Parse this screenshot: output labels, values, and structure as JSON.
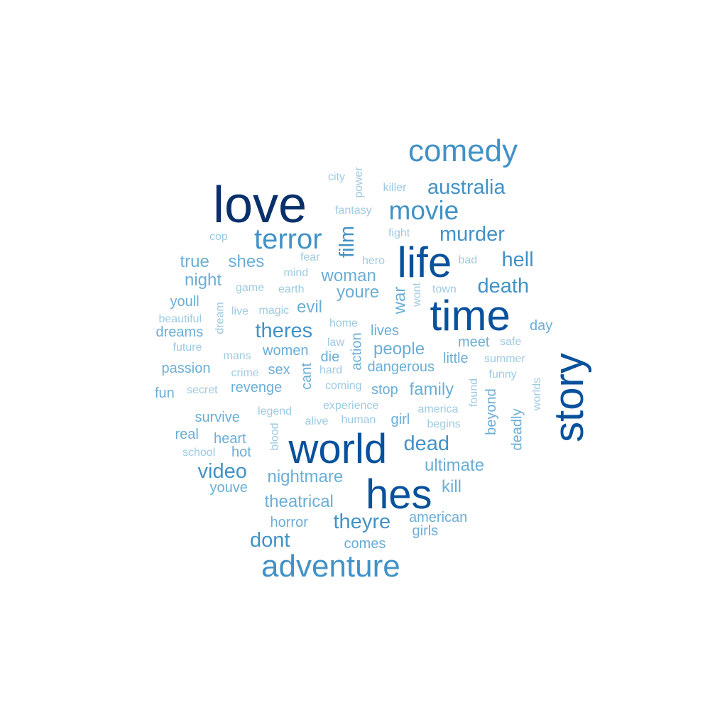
{
  "chart_data": {
    "type": "wordcloud",
    "palette": [
      "#08306b",
      "#08519c",
      "#2171b5",
      "#4292c6",
      "#6baed6",
      "#9ecae1"
    ],
    "words": [
      {
        "text": "love",
        "weight": 6,
        "vertical": false
      },
      {
        "text": "time",
        "weight": 6,
        "vertical": false
      },
      {
        "text": "life",
        "weight": 6,
        "vertical": false
      },
      {
        "text": "world",
        "weight": 6,
        "vertical": false
      },
      {
        "text": "hes",
        "weight": 6,
        "vertical": false
      },
      {
        "text": "story",
        "weight": 6,
        "vertical": true
      },
      {
        "text": "comedy",
        "weight": 4,
        "vertical": false
      },
      {
        "text": "terror",
        "weight": 4,
        "vertical": false
      },
      {
        "text": "adventure",
        "weight": 4,
        "vertical": false
      },
      {
        "text": "movie",
        "weight": 4,
        "vertical": false
      },
      {
        "text": "australia",
        "weight": 3,
        "vertical": false
      },
      {
        "text": "murder",
        "weight": 3,
        "vertical": false
      },
      {
        "text": "hell",
        "weight": 3,
        "vertical": false
      },
      {
        "text": "death",
        "weight": 3,
        "vertical": false
      },
      {
        "text": "theyre",
        "weight": 3,
        "vertical": false
      },
      {
        "text": "film",
        "weight": 3,
        "vertical": true
      },
      {
        "text": "theres",
        "weight": 3,
        "vertical": false
      },
      {
        "text": "dead",
        "weight": 3,
        "vertical": false
      },
      {
        "text": "video",
        "weight": 3,
        "vertical": false
      },
      {
        "text": "dont",
        "weight": 3,
        "vertical": false
      },
      {
        "text": "true",
        "weight": 2,
        "vertical": false
      },
      {
        "text": "shes",
        "weight": 2,
        "vertical": false
      },
      {
        "text": "night",
        "weight": 2,
        "vertical": false
      },
      {
        "text": "woman",
        "weight": 2,
        "vertical": false
      },
      {
        "text": "youre",
        "weight": 2,
        "vertical": false
      },
      {
        "text": "war",
        "weight": 2,
        "vertical": true
      },
      {
        "text": "evil",
        "weight": 2,
        "vertical": false
      },
      {
        "text": "people",
        "weight": 2,
        "vertical": false
      },
      {
        "text": "family",
        "weight": 2,
        "vertical": false
      },
      {
        "text": "ultimate",
        "weight": 2,
        "vertical": false
      },
      {
        "text": "nightmare",
        "weight": 2,
        "vertical": false
      },
      {
        "text": "kill",
        "weight": 2,
        "vertical": false
      },
      {
        "text": "theatrical",
        "weight": 2,
        "vertical": false
      },
      {
        "text": "lives",
        "weight": 1,
        "vertical": false
      },
      {
        "text": "die",
        "weight": 1,
        "vertical": false
      },
      {
        "text": "stop",
        "weight": 1,
        "vertical": false
      },
      {
        "text": "girl",
        "weight": 1,
        "vertical": false
      },
      {
        "text": "meet",
        "weight": 1,
        "vertical": false
      },
      {
        "text": "little",
        "weight": 1,
        "vertical": false
      },
      {
        "text": "dangerous",
        "weight": 1,
        "vertical": false
      },
      {
        "text": "women",
        "weight": 1,
        "vertical": false
      },
      {
        "text": "cant",
        "weight": 1,
        "vertical": true
      },
      {
        "text": "action",
        "weight": 1,
        "vertical": true
      },
      {
        "text": "day",
        "weight": 1,
        "vertical": false
      },
      {
        "text": "beyond",
        "weight": 1,
        "vertical": true
      },
      {
        "text": "deadly",
        "weight": 1,
        "vertical": true
      },
      {
        "text": "comes",
        "weight": 1,
        "vertical": false
      },
      {
        "text": "girls",
        "weight": 1,
        "vertical": false
      },
      {
        "text": "american",
        "weight": 1,
        "vertical": false
      },
      {
        "text": "horror",
        "weight": 1,
        "vertical": false
      },
      {
        "text": "youll",
        "weight": 1,
        "vertical": false
      },
      {
        "text": "dreams",
        "weight": 1,
        "vertical": false
      },
      {
        "text": "passion",
        "weight": 1,
        "vertical": false
      },
      {
        "text": "fun",
        "weight": 1,
        "vertical": false
      },
      {
        "text": "revenge",
        "weight": 1,
        "vertical": false
      },
      {
        "text": "sex",
        "weight": 1,
        "vertical": false
      },
      {
        "text": "survive",
        "weight": 1,
        "vertical": false
      },
      {
        "text": "real",
        "weight": 1,
        "vertical": false
      },
      {
        "text": "heart",
        "weight": 1,
        "vertical": false
      },
      {
        "text": "hot",
        "weight": 1,
        "vertical": false
      },
      {
        "text": "youve",
        "weight": 1,
        "vertical": false
      },
      {
        "text": "city",
        "weight": 0,
        "vertical": false
      },
      {
        "text": "power",
        "weight": 0,
        "vertical": true
      },
      {
        "text": "killer",
        "weight": 0,
        "vertical": false
      },
      {
        "text": "fantasy",
        "weight": 0,
        "vertical": false
      },
      {
        "text": "fight",
        "weight": 0,
        "vertical": false
      },
      {
        "text": "cop",
        "weight": 0,
        "vertical": false
      },
      {
        "text": "fear",
        "weight": 0,
        "vertical": false
      },
      {
        "text": "hero",
        "weight": 0,
        "vertical": false
      },
      {
        "text": "bad",
        "weight": 0,
        "vertical": false
      },
      {
        "text": "mind",
        "weight": 0,
        "vertical": false
      },
      {
        "text": "game",
        "weight": 0,
        "vertical": false
      },
      {
        "text": "earth",
        "weight": 0,
        "vertical": false
      },
      {
        "text": "wont",
        "weight": 0,
        "vertical": true
      },
      {
        "text": "town",
        "weight": 0,
        "vertical": false
      },
      {
        "text": "dream",
        "weight": 0,
        "vertical": true
      },
      {
        "text": "live",
        "weight": 0,
        "vertical": false
      },
      {
        "text": "magic",
        "weight": 0,
        "vertical": false
      },
      {
        "text": "beautiful",
        "weight": 0,
        "vertical": false
      },
      {
        "text": "home",
        "weight": 0,
        "vertical": false
      },
      {
        "text": "law",
        "weight": 0,
        "vertical": false
      },
      {
        "text": "safe",
        "weight": 0,
        "vertical": false
      },
      {
        "text": "future",
        "weight": 0,
        "vertical": false
      },
      {
        "text": "mans",
        "weight": 0,
        "vertical": false
      },
      {
        "text": "summer",
        "weight": 0,
        "vertical": false
      },
      {
        "text": "crime",
        "weight": 0,
        "vertical": false
      },
      {
        "text": "hard",
        "weight": 0,
        "vertical": false
      },
      {
        "text": "funny",
        "weight": 0,
        "vertical": false
      },
      {
        "text": "worlds",
        "weight": 0,
        "vertical": true
      },
      {
        "text": "secret",
        "weight": 0,
        "vertical": false
      },
      {
        "text": "coming",
        "weight": 0,
        "vertical": false
      },
      {
        "text": "found",
        "weight": 0,
        "vertical": true
      },
      {
        "text": "experience",
        "weight": 0,
        "vertical": false
      },
      {
        "text": "america",
        "weight": 0,
        "vertical": false
      },
      {
        "text": "legend",
        "weight": 0,
        "vertical": false
      },
      {
        "text": "alive",
        "weight": 0,
        "vertical": false
      },
      {
        "text": "human",
        "weight": 0,
        "vertical": false
      },
      {
        "text": "begins",
        "weight": 0,
        "vertical": false
      },
      {
        "text": "blood",
        "weight": 0,
        "vertical": true
      },
      {
        "text": "school",
        "weight": 0,
        "vertical": false
      }
    ]
  }
}
